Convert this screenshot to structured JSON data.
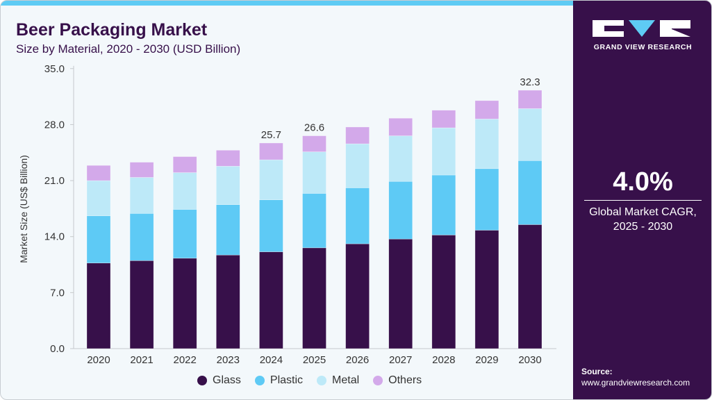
{
  "header": {
    "title": "Beer Packaging Market",
    "subtitle": "Size by Material, 2020 - 2030 (USD Billion)"
  },
  "side": {
    "brand": "GRAND VIEW RESEARCH",
    "cagr_value": "4.0%",
    "cagr_label_1": "Global Market CAGR,",
    "cagr_label_2": "2025 - 2030",
    "source_label": "Source:",
    "source_url": "www.grandviewresearch.com"
  },
  "chart_data": {
    "type": "bar",
    "stacked": true,
    "title": "Beer Packaging Market",
    "subtitle": "Size by Material, 2020 - 2030 (USD Billion)",
    "xlabel": "",
    "ylabel": "Market Size (US$ Billion)",
    "ylim": [
      0,
      35
    ],
    "yticks": [
      "0.0",
      "7.0",
      "14.0",
      "21.0",
      "28.0",
      "35.0"
    ],
    "ytick_values": [
      0,
      7,
      14,
      21,
      28,
      35
    ],
    "grid": false,
    "legend": "bottom",
    "categories": [
      "2020",
      "2021",
      "2022",
      "2023",
      "2024",
      "2025",
      "2026",
      "2027",
      "2028",
      "2029",
      "2030"
    ],
    "series": [
      {
        "name": "Glass",
        "color": "#37104a",
        "values": [
          10.7,
          11.0,
          11.3,
          11.7,
          12.1,
          12.6,
          13.1,
          13.7,
          14.2,
          14.8,
          15.5
        ]
      },
      {
        "name": "Plastic",
        "color": "#5ecaf5",
        "values": [
          5.9,
          5.9,
          6.1,
          6.3,
          6.5,
          6.8,
          7.0,
          7.2,
          7.5,
          7.7,
          8.0
        ]
      },
      {
        "name": "Metal",
        "color": "#bde9f8",
        "values": [
          4.4,
          4.5,
          4.6,
          4.8,
          5.0,
          5.2,
          5.5,
          5.7,
          5.9,
          6.2,
          6.5
        ]
      },
      {
        "name": "Others",
        "color": "#d3a9ea",
        "values": [
          1.9,
          1.9,
          2.0,
          2.0,
          2.1,
          2.0,
          2.1,
          2.2,
          2.2,
          2.3,
          2.3
        ]
      }
    ],
    "data_labels": {
      "2024": "25.7",
      "2025": "26.6",
      "2030": "32.3"
    }
  }
}
